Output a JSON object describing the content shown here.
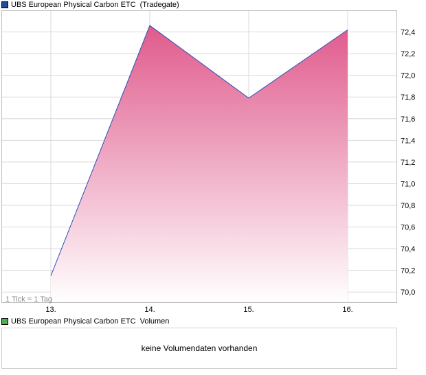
{
  "legend": {
    "price": {
      "name": "UBS European Physical Carbon ETC",
      "source": "(Tradegate)",
      "color": "#1f4e9e"
    },
    "volume": {
      "name": "UBS European Physical Carbon ETC",
      "source": "Volumen",
      "color": "#4caf50"
    }
  },
  "tick_note": "1 Tick = 1 Tag",
  "volume_message": "keine Volumendaten vorhanden",
  "colors": {
    "line": "#2b4fb5",
    "fill_top": "#e05a8c",
    "fill_bottom": "#ffffff",
    "grid": "#d9d9d9",
    "border": "#bfbfbf"
  },
  "chart_data": {
    "type": "area",
    "title": "UBS European Physical Carbon ETC (Tradegate)",
    "xlabel": "",
    "ylabel": "",
    "categories": [
      "13.",
      "14.",
      "15.",
      "16."
    ],
    "series": [
      {
        "name": "UBS European Physical Carbon ETC",
        "values": [
          70.15,
          72.46,
          71.79,
          72.42
        ]
      }
    ],
    "ylim": [
      69.9,
      72.6
    ],
    "yticks": [
      70.0,
      70.2,
      70.4,
      70.6,
      70.8,
      71.0,
      71.2,
      71.4,
      71.6,
      71.8,
      72.0,
      72.2,
      72.4
    ],
    "ytick_labels": [
      "70,0",
      "70,2",
      "70,4",
      "70,6",
      "70,8",
      "71,0",
      "71,2",
      "71,4",
      "71,6",
      "71,8",
      "72,0",
      "72,2",
      "72,4"
    ],
    "grid": true,
    "y_axis_side": "right"
  }
}
